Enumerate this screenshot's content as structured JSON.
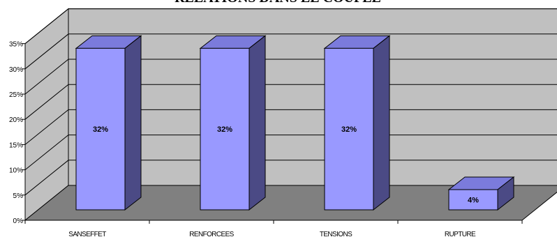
{
  "chart_data": {
    "type": "bar",
    "title": "RELATIONS DANS LE COUPLE",
    "categories": [
      "SANSEFFET",
      "RENFORCEES",
      "TENSIONS",
      "RUPTURE"
    ],
    "values": [
      32,
      32,
      32,
      4
    ],
    "data_labels": [
      "32%",
      "32%",
      "32%",
      "4%"
    ],
    "y_ticks": [
      "0%",
      "5%",
      "10%",
      "15%",
      "20%",
      "25%",
      "30%",
      "35%"
    ],
    "ylim": [
      0,
      35
    ],
    "grid": true,
    "legend": "none",
    "style": "3d",
    "colors": {
      "bar_front": "#9999ff",
      "bar_top": "#7b7bdc",
      "bar_side": "#4b4a85",
      "back_wall": "#c0c0c0",
      "side_wall": "#c0c0c0",
      "floor": "#808080"
    }
  }
}
